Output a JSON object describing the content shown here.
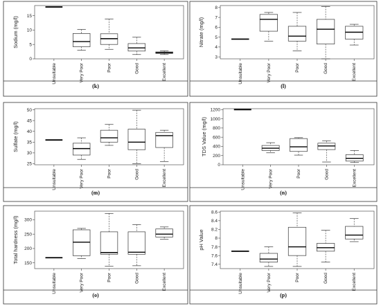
{
  "chart_data": [
    {
      "type": "box",
      "tag": "(k)",
      "ylabel": "Sodium (mg/l)",
      "categories": [
        "Unsuitable",
        "Very Poor",
        "Poor",
        "Good",
        "Excellent"
      ],
      "ylim": [
        0,
        18.5
      ],
      "yticks": [
        0,
        5,
        10,
        15
      ],
      "boxes": [
        {
          "single": 18
        },
        {
          "min": 3,
          "q1": 4.2,
          "median": 6,
          "q3": 8.8,
          "max": 10.2
        },
        {
          "min": 3.3,
          "q1": 5,
          "median": 7,
          "q3": 8.7,
          "max": 13.8
        },
        {
          "min": 1.5,
          "q1": 2.7,
          "median": 3.8,
          "q3": 5.3,
          "max": 7.5
        },
        {
          "min": 1.5,
          "q1": 1.9,
          "median": 2.1,
          "q3": 2.4,
          "max": 2.8
        }
      ]
    },
    {
      "type": "box",
      "tag": "(l)",
      "ylabel": "Nitrate (mg/l)",
      "categories": [
        "Unsuitable",
        "Very Poor",
        "Poor",
        "Good",
        "Excellent"
      ],
      "ylim": [
        2.8,
        8.2
      ],
      "yticks": [
        3,
        4,
        5,
        6,
        7,
        8
      ],
      "boxes": [
        {
          "single": 4.8
        },
        {
          "min": 4.6,
          "q1": 5.6,
          "median": 6.8,
          "q3": 7.3,
          "max": 7.5
        },
        {
          "min": 3.6,
          "q1": 4.6,
          "median": 5.1,
          "q3": 6.1,
          "max": 7.5
        },
        {
          "min": 2.8,
          "q1": 4.3,
          "median": 5.8,
          "q3": 6.8,
          "max": 8.1
        },
        {
          "min": 4.2,
          "q1": 4.8,
          "median": 5.5,
          "q3": 6.1,
          "max": 6.3
        }
      ]
    },
    {
      "type": "box",
      "tag": "(m)",
      "ylabel": "Sulfate (mg/l)",
      "categories": [
        "Unsuitable",
        "Very Poor",
        "Poor",
        "Good",
        "Excellent"
      ],
      "ylim": [
        24.5,
        50.5
      ],
      "yticks": [
        25,
        30,
        35,
        40,
        45,
        50
      ],
      "boxes": [
        {
          "single": 36
        },
        {
          "min": 27,
          "q1": 29,
          "median": 32,
          "q3": 34.5,
          "max": 37
        },
        {
          "min": 33.5,
          "q1": 35,
          "median": 37,
          "q3": 40.5,
          "max": 43.2
        },
        {
          "min": 25,
          "q1": 31.5,
          "median": 35,
          "q3": 41,
          "max": 49.8
        },
        {
          "min": 26,
          "q1": 32.5,
          "median": 38,
          "q3": 39.5,
          "max": 40.5
        }
      ]
    },
    {
      "type": "box",
      "tag": "(n)",
      "ylabel": "TDS Value (mg/l)",
      "categories": [
        "Unsuitable",
        "Very Poor",
        "Poor",
        "Good",
        "Excellent"
      ],
      "ylim": [
        0,
        1220
      ],
      "yticks": [
        0,
        200,
        400,
        600,
        800,
        1000,
        1200
      ],
      "boxes": [
        {
          "single": 1200
        },
        {
          "min": 260,
          "q1": 310,
          "median": 360,
          "q3": 420,
          "max": 480
        },
        {
          "min": 210,
          "q1": 290,
          "median": 390,
          "q3": 570,
          "max": 590
        },
        {
          "min": 60,
          "q1": 330,
          "median": 410,
          "q3": 470,
          "max": 520
        },
        {
          "min": 50,
          "q1": 80,
          "median": 140,
          "q3": 220,
          "max": 310
        }
      ]
    },
    {
      "type": "box",
      "tag": "(o)",
      "ylabel": "Total hardness (mg/l)",
      "categories": [
        "Unsuitable",
        "Very Poor",
        "Poor",
        "Good",
        "Excellent"
      ],
      "ylim": [
        130,
        330
      ],
      "yticks": [
        150,
        200,
        250,
        300
      ],
      "boxes": [
        {
          "single": 168
        },
        {
          "min": 165,
          "q1": 175,
          "median": 222,
          "q3": 265,
          "max": 270
        },
        {
          "min": 138,
          "q1": 180,
          "median": 186,
          "q3": 258,
          "max": 322
        },
        {
          "min": 140,
          "q1": 180,
          "median": 187,
          "q3": 258,
          "max": 283
        },
        {
          "min": 232,
          "q1": 240,
          "median": 250,
          "q3": 268,
          "max": 275
        }
      ]
    },
    {
      "type": "box",
      "tag": "(p)",
      "ylabel": "pH Value",
      "categories": [
        "Unsuitable",
        "Very Poor",
        "Poor",
        "Good",
        "Excellent"
      ],
      "ylim": [
        7.3,
        8.62
      ],
      "yticks": [
        7.4,
        7.6,
        7.8,
        8.0,
        8.2,
        8.4,
        8.6
      ],
      "boxes": [
        {
          "single": 7.7
        },
        {
          "min": 7.35,
          "q1": 7.45,
          "median": 7.52,
          "q3": 7.65,
          "max": 7.8
        },
        {
          "min": 7.35,
          "q1": 7.6,
          "median": 7.8,
          "q3": 8.25,
          "max": 8.58
        },
        {
          "min": 7.45,
          "q1": 7.7,
          "median": 7.78,
          "q3": 7.88,
          "max": 8.18
        },
        {
          "min": 7.92,
          "q1": 7.98,
          "median": 8.07,
          "q3": 8.27,
          "max": 8.45
        }
      ]
    }
  ]
}
